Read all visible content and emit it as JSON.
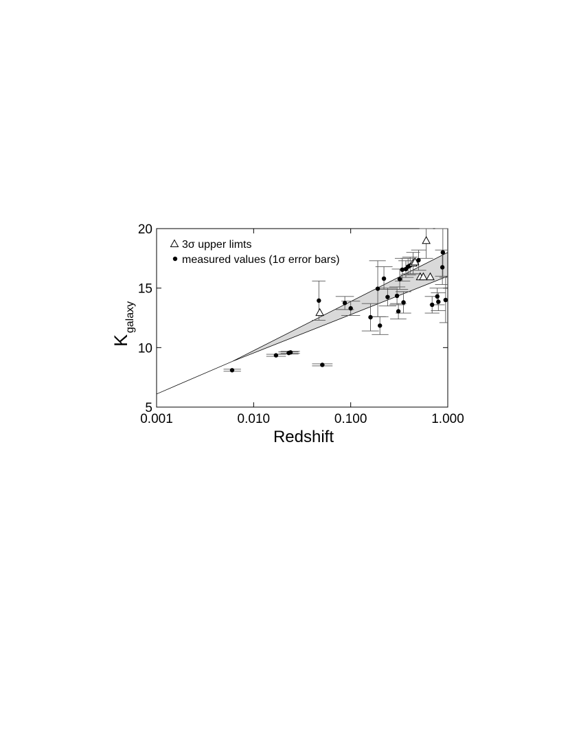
{
  "chart_data": {
    "type": "scatter",
    "xlabel": "Redshift",
    "ylabel": {
      "main": "K",
      "sub": "galaxy"
    },
    "xscale": "log",
    "xlim": [
      0.001,
      1.0
    ],
    "ylim": [
      5,
      20
    ],
    "xticks": [
      0.001,
      0.01,
      0.1,
      1.0
    ],
    "xtick_labels": [
      "0.001",
      "0.010",
      "0.100",
      "1.000"
    ],
    "yticks": [
      5,
      10,
      15,
      20
    ],
    "ytick_labels": [
      "5",
      "10",
      "15",
      "20"
    ],
    "legend": {
      "placement": "top-left",
      "entries": [
        {
          "marker": "open-triangle",
          "label": "3σ upper limts"
        },
        {
          "marker": "filled-circle",
          "label": "measured values (1σ error bars)"
        }
      ]
    },
    "band": {
      "x": [
        0.001,
        0.00603,
        1.0
      ],
      "upper": [
        6.1,
        8.84,
        18.0
      ],
      "lower": [
        6.1,
        8.84,
        16.0
      ]
    },
    "series": [
      {
        "marker": "filled-circle",
        "points": [
          {
            "x": 0.006,
            "y": 8.1,
            "xlo": 0.0049,
            "xhi": 0.0074
          },
          {
            "x": 0.017,
            "y": 9.35,
            "xlo": 0.0135,
            "xhi": 0.0215
          },
          {
            "x": 0.023,
            "y": 9.55,
            "xlo": 0.018,
            "xhi": 0.029
          },
          {
            "x": 0.024,
            "y": 9.6,
            "xlo": 0.019,
            "xhi": 0.03
          },
          {
            "x": 0.051,
            "y": 8.55,
            "xlo": 0.04,
            "xhi": 0.065
          },
          {
            "x": 0.047,
            "y": 13.95,
            "ylo": 12.3,
            "yhi": 15.6,
            "xlo": 0.04,
            "xhi": 0.055
          },
          {
            "x": 0.087,
            "y": 13.75,
            "ylo": 13.2,
            "yhi": 14.3,
            "xlo": 0.07,
            "xhi": 0.108
          },
          {
            "x": 0.1,
            "y": 13.3,
            "ylo": 12.7,
            "yhi": 13.9,
            "xlo": 0.08,
            "xhi": 0.125
          },
          {
            "x": 0.16,
            "y": 12.55,
            "ylo": 11.4,
            "yhi": 13.7,
            "xlo": 0.13,
            "xhi": 0.195
          },
          {
            "x": 0.19,
            "y": 14.95,
            "ylo": 12.6,
            "yhi": 17.3,
            "xlo": 0.155,
            "xhi": 0.23
          },
          {
            "x": 0.2,
            "y": 11.85,
            "ylo": 11.1,
            "yhi": 12.6,
            "xlo": 0.165,
            "xhi": 0.245
          },
          {
            "x": 0.22,
            "y": 15.8,
            "ylo": 14.9,
            "yhi": 16.8,
            "xlo": 0.18,
            "xhi": 0.27
          },
          {
            "x": 0.24,
            "y": 14.25,
            "ylo": 13.5,
            "yhi": 15.0,
            "xlo": 0.195,
            "xhi": 0.295
          },
          {
            "x": 0.3,
            "y": 14.35,
            "ylo": 13.6,
            "yhi": 15.1,
            "xlo": 0.25,
            "xhi": 0.365
          },
          {
            "x": 0.31,
            "y": 13.05,
            "ylo": 12.4,
            "yhi": 13.7,
            "xlo": 0.255,
            "xhi": 0.375
          },
          {
            "x": 0.32,
            "y": 15.75,
            "ylo": 14.9,
            "yhi": 16.6,
            "xlo": 0.265,
            "xhi": 0.39
          },
          {
            "x": 0.34,
            "y": 16.55,
            "ylo": 15.6,
            "yhi": 17.5,
            "xlo": 0.285,
            "xhi": 0.41
          },
          {
            "x": 0.35,
            "y": 13.8,
            "ylo": 12.9,
            "yhi": 14.7,
            "xlo": 0.29,
            "xhi": 0.42
          },
          {
            "x": 0.37,
            "y": 16.6,
            "ylo": 15.9,
            "yhi": 17.3,
            "xlo": 0.31,
            "xhi": 0.445
          },
          {
            "x": 0.39,
            "y": 16.8,
            "ylo": 16.1,
            "yhi": 17.5,
            "xlo": 0.325,
            "xhi": 0.47
          },
          {
            "x": 0.41,
            "y": 16.9,
            "ylo": 16.2,
            "yhi": 17.6,
            "xlo": 0.34,
            "xhi": 0.49
          },
          {
            "x": 0.5,
            "y": 17.35,
            "ylo": 16.5,
            "yhi": 18.2,
            "xlo": 0.42,
            "xhi": 0.6
          },
          {
            "x": 0.69,
            "y": 13.6,
            "ylo": 12.9,
            "yhi": 14.3,
            "xlo": 0.58,
            "xhi": 0.82
          },
          {
            "x": 0.78,
            "y": 14.3,
            "ylo": 13.6,
            "yhi": 15.0,
            "xlo": 0.65,
            "xhi": 0.93
          },
          {
            "x": 0.8,
            "y": 13.85,
            "ylo": 13.1,
            "yhi": 14.6,
            "xlo": 0.67,
            "xhi": 0.95
          },
          {
            "x": 0.88,
            "y": 16.75,
            "ylo": 15.3,
            "yhi": 18.2,
            "xlo": 0.74,
            "xhi": 1.0
          },
          {
            "x": 0.89,
            "y": 18.0,
            "ylo": 16.0,
            "yhi": 20.0,
            "xlo": 0.74,
            "xhi": 1.0
          },
          {
            "x": 0.95,
            "y": 14.0,
            "ylo": 12.1,
            "yhi": 15.9,
            "xlo": 0.82,
            "xhi": 1.0
          }
        ]
      },
      {
        "marker": "open-triangle",
        "points": [
          {
            "x": 0.048,
            "y": 12.95
          },
          {
            "x": 0.44,
            "y": 17.1,
            "ylo": 16.2,
            "yhi": 18.0
          },
          {
            "x": 0.46,
            "y": 17.2
          },
          {
            "x": 0.52,
            "y": 15.95
          },
          {
            "x": 0.56,
            "y": 15.95
          },
          {
            "x": 0.6,
            "y": 19.0,
            "ylo": 17.5,
            "yhi": 20.0
          },
          {
            "x": 0.66,
            "y": 15.95
          }
        ]
      }
    ]
  }
}
